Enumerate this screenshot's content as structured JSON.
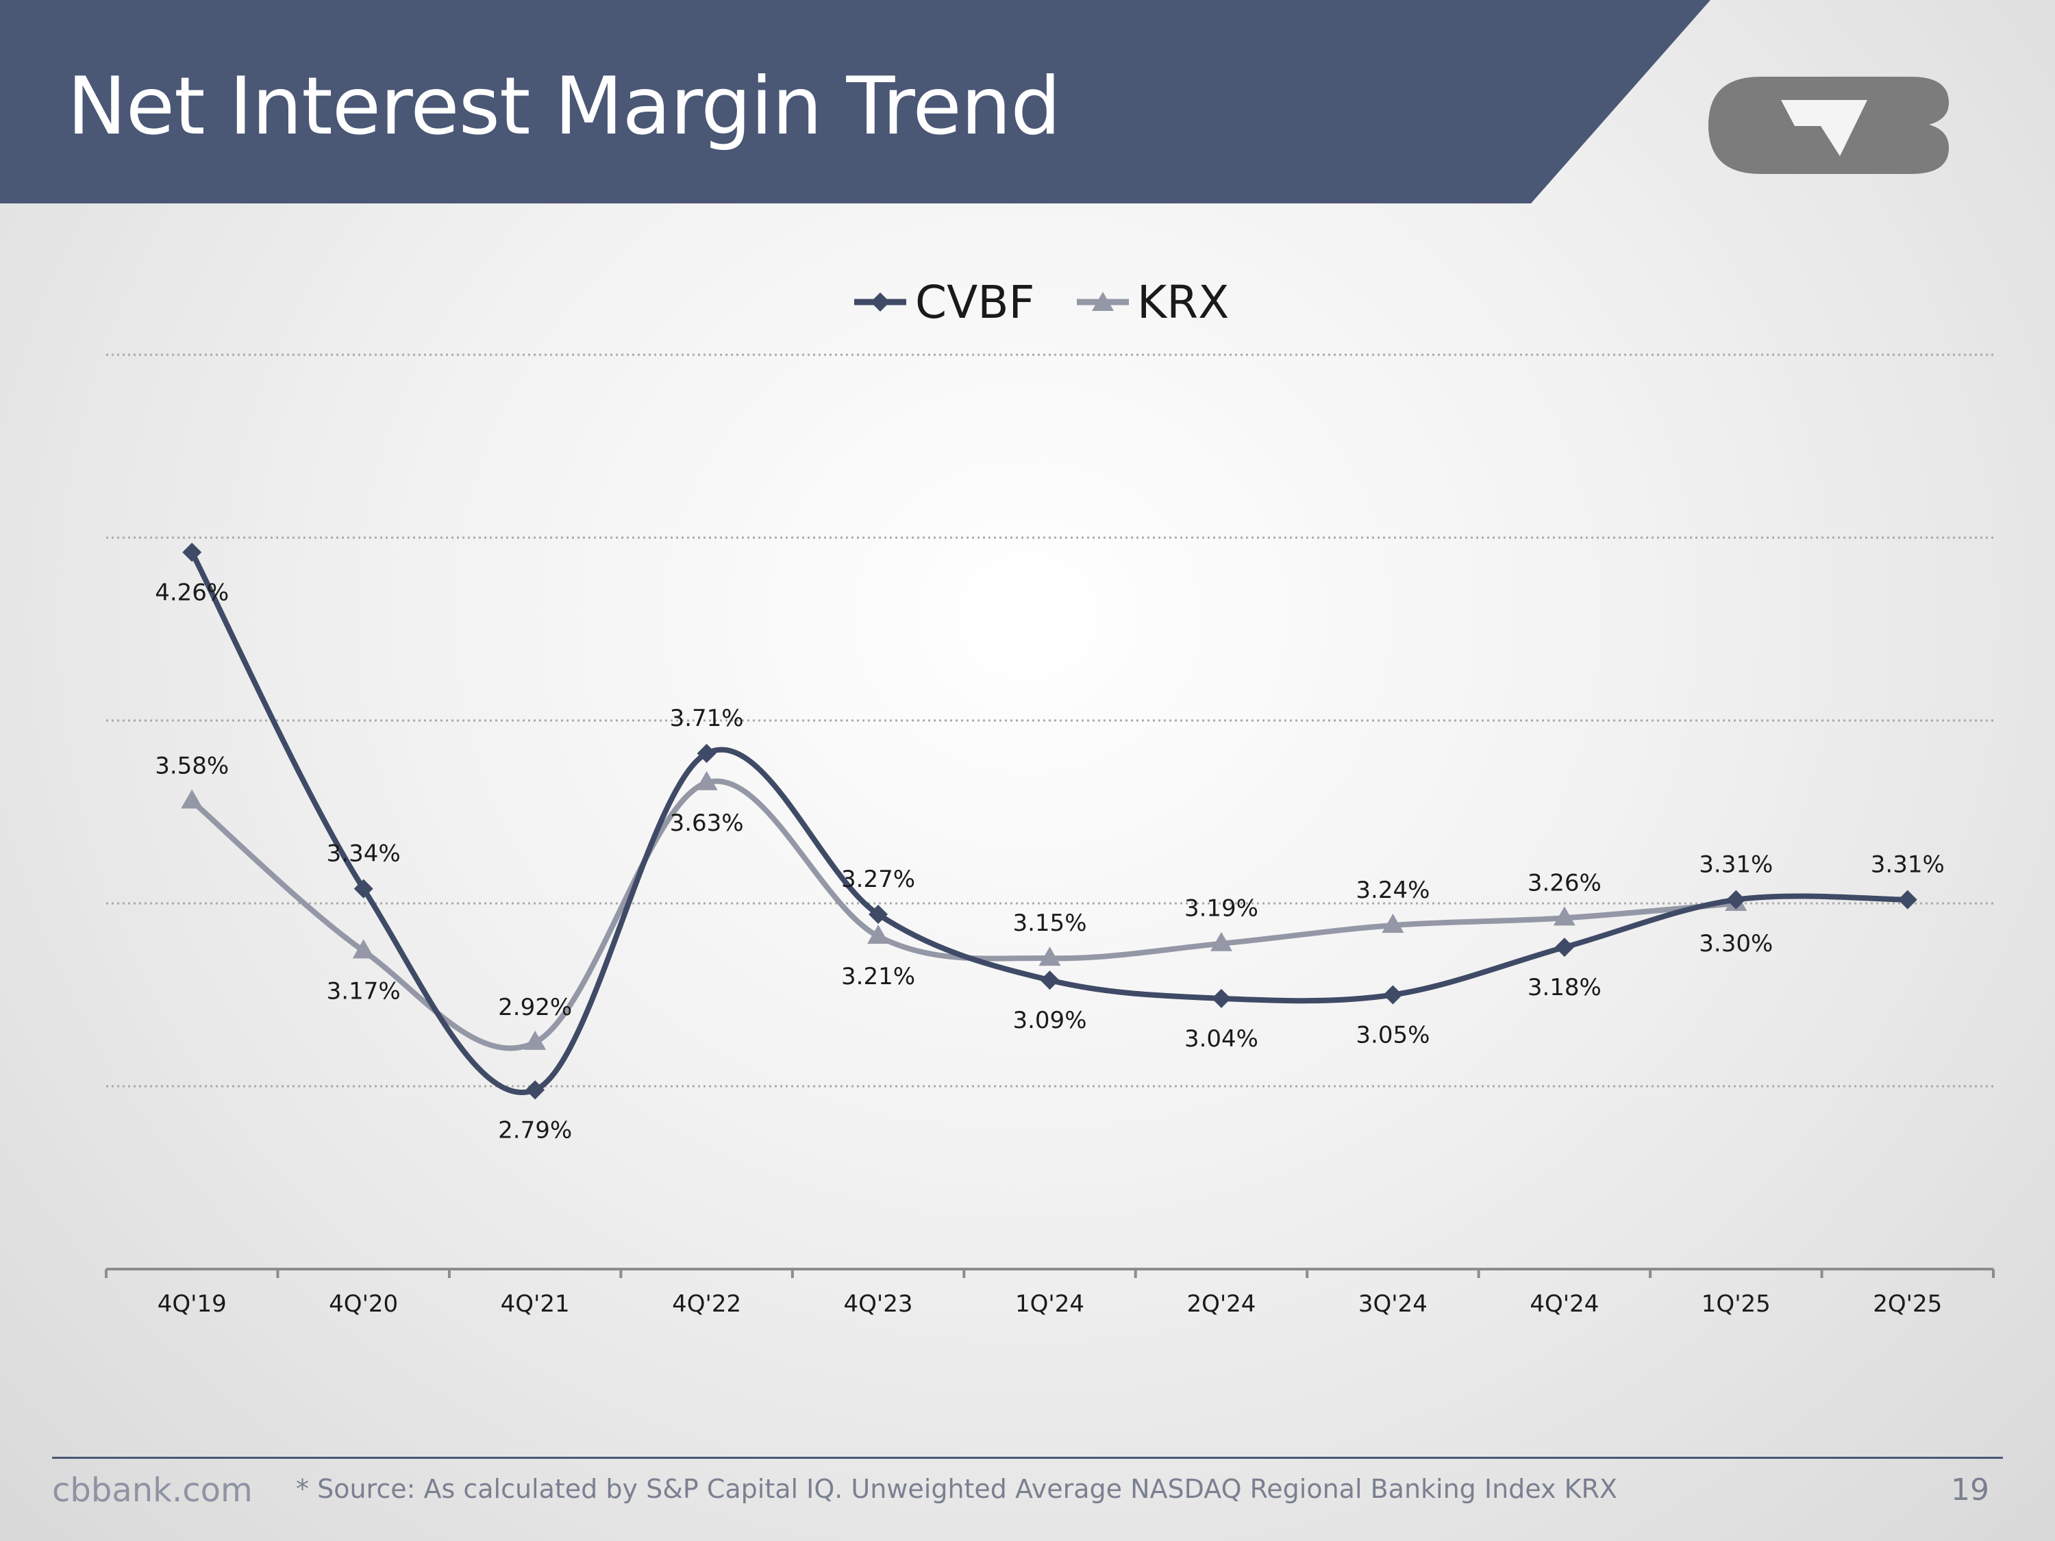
{
  "header": {
    "title": "Net Interest Margin Trend",
    "band_color": "#4a5775",
    "logo": "cvb-logo"
  },
  "chart_data": {
    "type": "line",
    "title": "",
    "xlabel": "",
    "ylabel": "",
    "categories": [
      "4Q'19",
      "4Q'20",
      "4Q'21",
      "4Q'22",
      "4Q'23",
      "1Q'24",
      "2Q'24",
      "3Q'24",
      "4Q'24",
      "1Q'25",
      "2Q'25"
    ],
    "series": [
      {
        "name": "CVBF",
        "marker": "diamond",
        "color": "#3f4a66",
        "values": [
          4.26,
          3.34,
          2.79,
          3.71,
          3.27,
          3.09,
          3.04,
          3.05,
          3.18,
          3.31,
          3.31
        ],
        "labels": [
          "4.26%",
          "3.34%",
          "2.79%",
          "3.71%",
          "3.27%",
          "3.09%",
          "3.04%",
          "3.05%",
          "3.18%",
          "3.31%",
          "3.31%"
        ]
      },
      {
        "name": "KRX",
        "marker": "triangle",
        "color": "#9497a6",
        "values": [
          3.58,
          3.17,
          2.92,
          3.63,
          3.21,
          3.15,
          3.19,
          3.24,
          3.26,
          3.3,
          null
        ],
        "labels": [
          "3.58%",
          "3.17%",
          "2.92%",
          "3.63%",
          "3.21%",
          "3.15%",
          "3.19%",
          "3.24%",
          "3.26%",
          "3.30%",
          null
        ]
      }
    ],
    "ylim": [
      2.3,
      4.8
    ],
    "gridlines_at": [
      2.8,
      3.3,
      3.8,
      4.3,
      4.8
    ],
    "grid": true,
    "grid_style": "dotted",
    "legend": "top-center",
    "smooth": true
  },
  "footer": {
    "website": "cbbank.com",
    "source": "* Source: As calculated by S&P Capital IQ. Unweighted Average NASDAQ Regional Banking Index KRX",
    "page_number": "19"
  }
}
